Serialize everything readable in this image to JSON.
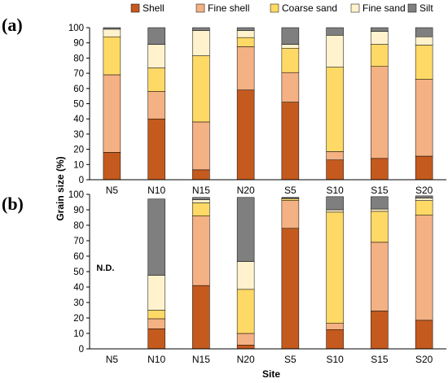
{
  "chart_data": [
    {
      "type": "bar",
      "stacked": true,
      "panel_label": "(a)",
      "categories": [
        "N5",
        "N10",
        "N15",
        "N20",
        "S5",
        "S10",
        "S15",
        "S20"
      ],
      "series": [
        {
          "name": "Shell",
          "color": "#c55a1e",
          "values": [
            18,
            40,
            6.5,
            59,
            51,
            13,
            14,
            15.5
          ]
        },
        {
          "name": "Fine shell",
          "color": "#f4b183",
          "values": [
            51,
            18,
            31.5,
            28.5,
            19.5,
            5.5,
            60.5,
            50.5
          ]
        },
        {
          "name": "Coarse sand",
          "color": "#ffd966",
          "values": [
            25,
            15.5,
            43.5,
            6,
            16,
            55.5,
            14.5,
            22.5
          ]
        },
        {
          "name": "Fine sand",
          "color": "#fff2cc",
          "values": [
            5,
            15.5,
            16.5,
            4.5,
            2.5,
            21,
            8.5,
            5.5
          ]
        },
        {
          "name": "Silt",
          "color": "#7f7f7f",
          "values": [
            1,
            11,
            2,
            2,
            11,
            5,
            2.5,
            6
          ]
        }
      ],
      "ylim": [
        0,
        100
      ],
      "yticks": [
        "0",
        "10",
        "20",
        "30",
        "40",
        "50",
        "60",
        "70",
        "80",
        "90",
        "100"
      ],
      "legend_position": "top"
    },
    {
      "type": "bar",
      "stacked": true,
      "panel_label": "(b)",
      "categories": [
        "N5",
        "N10",
        "N15",
        "N20",
        "S5",
        "S10",
        "S15",
        "S20"
      ],
      "series": [
        {
          "name": "Shell",
          "color": "#c55a1e",
          "values": [
            0,
            13,
            41,
            2.5,
            78,
            12.5,
            24.5,
            18.5
          ]
        },
        {
          "name": "Fine shell",
          "color": "#f4b183",
          "values": [
            0,
            6.5,
            45,
            7.5,
            18,
            4,
            44.5,
            68
          ]
        },
        {
          "name": "Coarse sand",
          "color": "#ffd966",
          "values": [
            0,
            5.5,
            8.5,
            28.5,
            1,
            72,
            20,
            9.5
          ]
        },
        {
          "name": "Fine sand",
          "color": "#fff2cc",
          "values": [
            0,
            22.5,
            2,
            18,
            0.5,
            1.5,
            1.5,
            1.5
          ]
        },
        {
          "name": "Silt",
          "color": "#7f7f7f",
          "values": [
            0,
            49.5,
            1.5,
            41.5,
            0.5,
            8.5,
            8,
            1.5
          ]
        }
      ],
      "ylim": [
        0,
        100
      ],
      "yticks": [
        "0",
        "10",
        "20",
        "30",
        "40",
        "50",
        "60",
        "70",
        "80",
        "90",
        "100"
      ],
      "annotation": "N.D."
    }
  ],
  "ylabel": "Grain size (%)",
  "xlabel": "Site",
  "legend": [
    "Shell",
    "Fine shell",
    "Coarse sand",
    "Fine sand",
    "Silt"
  ]
}
